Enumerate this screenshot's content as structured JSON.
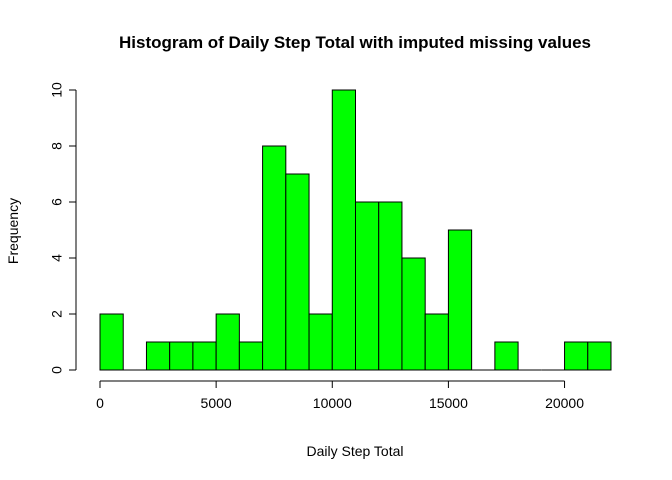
{
  "chart_data": {
    "type": "bar",
    "title": "Histogram of Daily Step Total with imputed missing values",
    "xlabel": "Daily Step Total",
    "ylabel": "Frequency",
    "bin_width": 1000,
    "bins_start": [
      0,
      1000,
      2000,
      3000,
      4000,
      5000,
      6000,
      7000,
      8000,
      9000,
      10000,
      11000,
      12000,
      13000,
      14000,
      15000,
      16000,
      17000,
      18000,
      19000,
      20000,
      21000
    ],
    "values": [
      2,
      0,
      1,
      1,
      1,
      2,
      1,
      8,
      7,
      2,
      10,
      6,
      6,
      4,
      2,
      5,
      0,
      1,
      0,
      0,
      1,
      1
    ],
    "x_ticks": [
      "0",
      "5000",
      "10000",
      "15000",
      "20000"
    ],
    "x_tick_values": [
      0,
      5000,
      10000,
      15000,
      20000
    ],
    "y_ticks": [
      "0",
      "2",
      "4",
      "6",
      "8",
      "10"
    ],
    "y_tick_values": [
      0,
      2,
      4,
      6,
      8,
      10
    ],
    "xlim": [
      0,
      22000
    ],
    "ylim": [
      0,
      10
    ],
    "grid": false,
    "bar_color": "#00ff00"
  }
}
